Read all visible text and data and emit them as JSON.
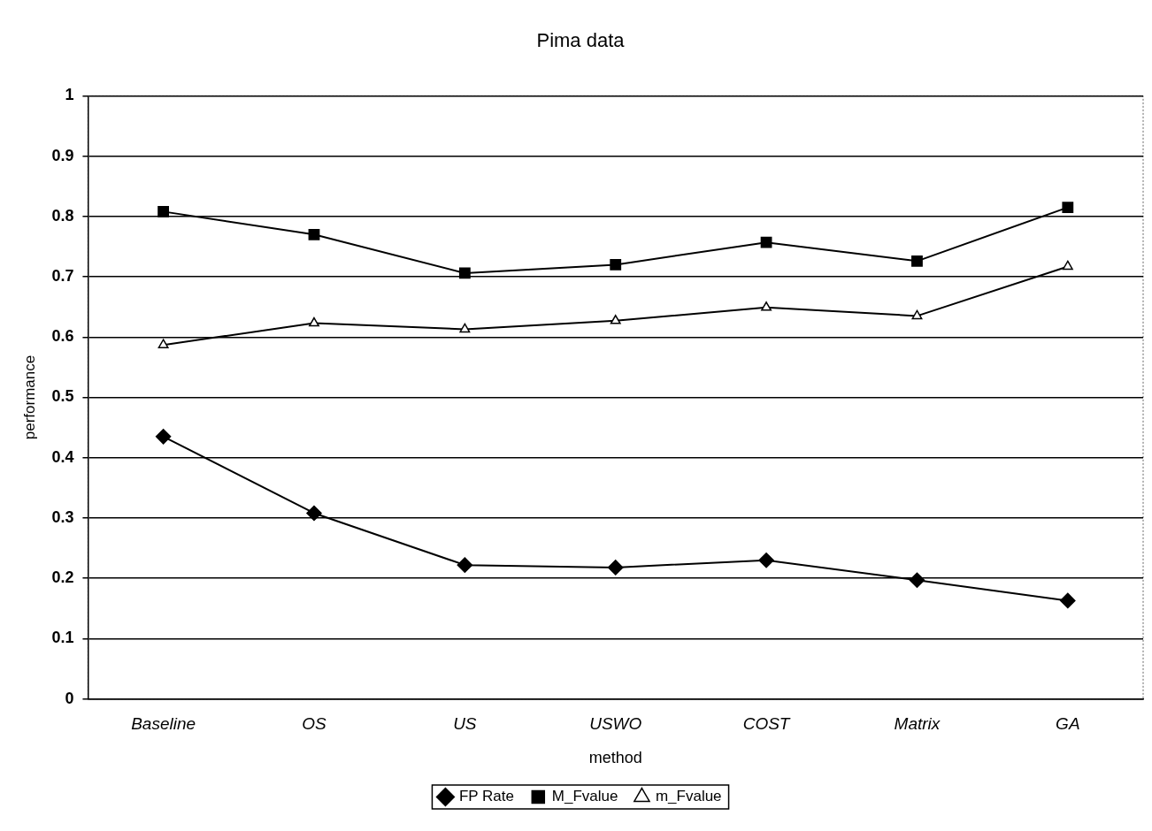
{
  "chart_data": {
    "type": "line",
    "title": "Pima data",
    "xlabel": "method",
    "ylabel": "performance",
    "categories": [
      "Baseline",
      "OS",
      "US",
      "USWO",
      "COST",
      "Matrix",
      "GA"
    ],
    "series": [
      {
        "name": "FP Rate",
        "color": "#000000",
        "marker": "diamond",
        "values": [
          0.435,
          0.308,
          0.222,
          0.218,
          0.23,
          0.197,
          0.163
        ]
      },
      {
        "name": "M_Fvalue",
        "color": "#000000",
        "marker": "square",
        "values": [
          0.808,
          0.77,
          0.706,
          0.72,
          0.757,
          0.726,
          0.815
        ]
      },
      {
        "name": "m_Fvalue",
        "color": "#000000",
        "marker": "triangle",
        "values": [
          0.587,
          0.623,
          0.613,
          0.627,
          0.649,
          0.635,
          0.717
        ]
      }
    ],
    "ylim": [
      0,
      1
    ],
    "yticks": [
      0,
      0.1,
      0.2,
      0.3,
      0.4,
      0.5,
      0.6,
      0.7,
      0.8,
      0.9,
      1
    ],
    "grid": "y",
    "legend": "bottom"
  }
}
